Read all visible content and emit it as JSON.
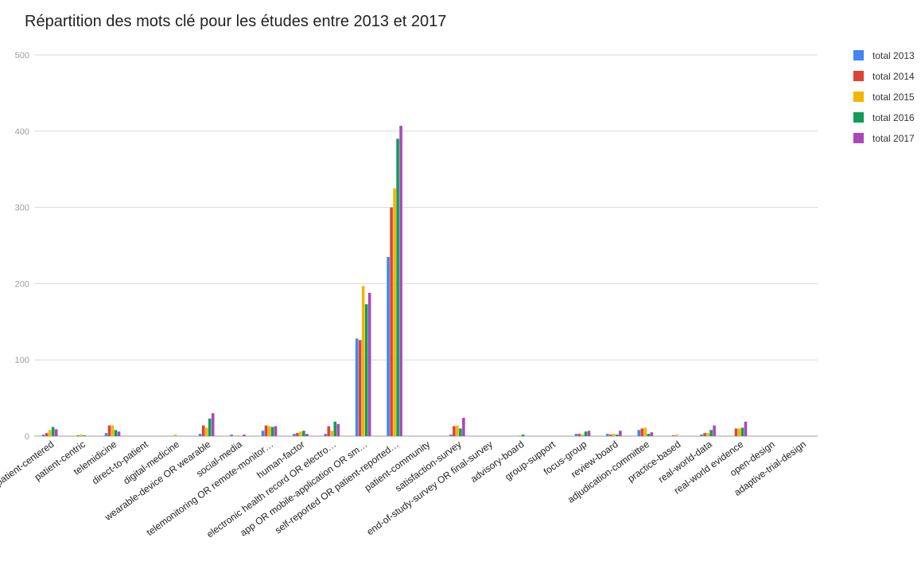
{
  "chart_data": {
    "type": "bar",
    "title": "Répartition des mots clé pour les études entre 2013 et 2017",
    "xlabel": "",
    "ylabel": "",
    "ylim": [
      0,
      500
    ],
    "yticks": [
      "0",
      "100",
      "200",
      "300",
      "400",
      "500"
    ],
    "grid": true,
    "legend_position": "top-right",
    "categories": [
      "patient-centered",
      "patient-centric",
      "telemidicine",
      "direct-to-patient",
      "digital-medicine",
      "wearable-device OR wearable",
      "social-media",
      "telemonitoring OR remote-monitor…",
      "human-factor",
      "electronic health record OR electro…",
      "app OR mobile-application OR sm…",
      "self-reported OR patient-reported…",
      "patient-community",
      "satisfaction-survey",
      "end-of-study-survey OR final-survey",
      "advisory-board",
      "group-support",
      "focus-group",
      "review-board",
      "adjudication-committee",
      "practice-based",
      "real-world-data",
      "real-world evidence",
      "open-design",
      "adaptive-trial-design"
    ],
    "series": [
      {
        "name": "total 2013",
        "color": "#4285f4",
        "values": [
          2,
          0,
          4,
          0,
          0,
          3,
          2,
          7,
          3,
          3,
          128,
          235,
          0,
          2,
          0,
          0,
          0,
          3,
          3,
          8,
          0,
          2,
          0,
          0,
          0
        ]
      },
      {
        "name": "total 2014",
        "color": "#db4437",
        "values": [
          4,
          1,
          14,
          0,
          0,
          14,
          0,
          14,
          4,
          13,
          126,
          300,
          0,
          13,
          0,
          0,
          0,
          3,
          2,
          10,
          1,
          4,
          10,
          0,
          0
        ]
      },
      {
        "name": "total 2015",
        "color": "#f4b400",
        "values": [
          8,
          2,
          14,
          0,
          2,
          11,
          1,
          13,
          6,
          7,
          197,
          325,
          0,
          14,
          0,
          1,
          0,
          2,
          3,
          11,
          2,
          4,
          10,
          0,
          0
        ]
      },
      {
        "name": "total 2016",
        "color": "#0f9d58",
        "values": [
          12,
          1,
          8,
          0,
          0,
          23,
          0,
          12,
          7,
          19,
          173,
          390,
          0,
          10,
          0,
          2,
          0,
          6,
          2,
          3,
          0,
          8,
          11,
          0,
          0
        ]
      },
      {
        "name": "total 2017",
        "color": "#ab47bc",
        "values": [
          9,
          0,
          6,
          0,
          0,
          30,
          2,
          13,
          3,
          16,
          188,
          407,
          0,
          24,
          0,
          0,
          0,
          7,
          7,
          5,
          0,
          14,
          19,
          0,
          0
        ]
      }
    ]
  }
}
